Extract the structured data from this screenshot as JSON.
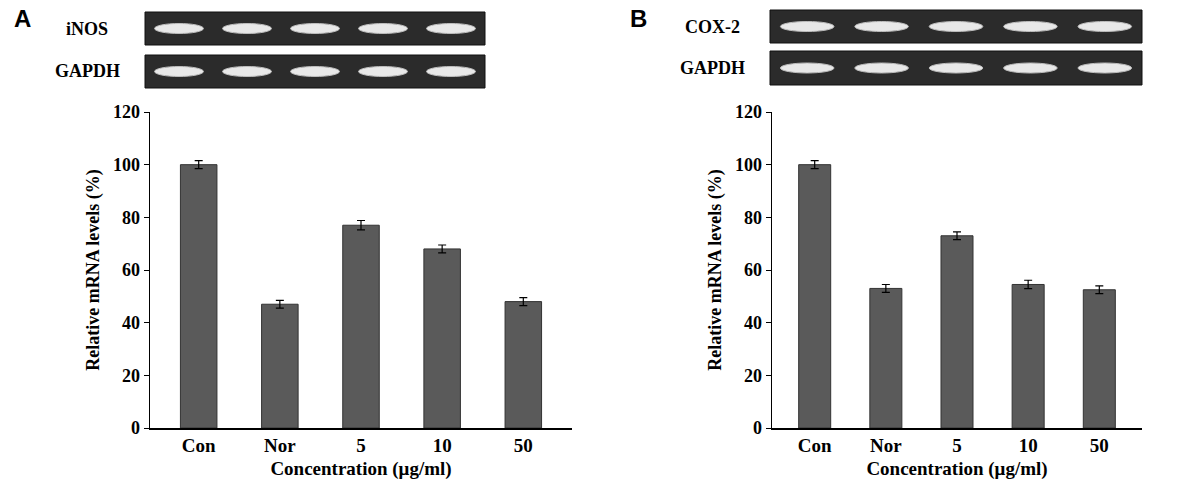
{
  "chart_data": [
    {
      "type": "bar",
      "panel": "A",
      "gel_labels": [
        "iNOS",
        "GAPDH"
      ],
      "categories": [
        "Con",
        "Nor",
        "5",
        "10",
        "50"
      ],
      "values": [
        100,
        47,
        77,
        68,
        48
      ],
      "errors": [
        1.5,
        1.5,
        1.8,
        1.5,
        1.5
      ],
      "color": "#5a5a5a",
      "x_label": "Concentration (μg/ml)",
      "y_label": "Relative mRNA levels (%)",
      "ylim": [
        0,
        120
      ],
      "yticks": [
        0,
        20,
        40,
        60,
        80,
        100,
        120
      ],
      "grid": false
    },
    {
      "type": "bar",
      "panel": "B",
      "gel_labels": [
        "COX-2",
        "GAPDH"
      ],
      "categories": [
        "Con",
        "Nor",
        "5",
        "10",
        "50"
      ],
      "values": [
        100,
        53,
        73,
        54.5,
        52.5
      ],
      "errors": [
        1.5,
        1.5,
        1.5,
        1.6,
        1.5
      ],
      "color": "#5a5a5a",
      "x_label": "Concentration (μg/ml)",
      "y_label": "Relative mRNA levels (%)",
      "ylim": [
        0,
        120
      ],
      "yticks": [
        0,
        20,
        40,
        60,
        80,
        100,
        120
      ],
      "grid": false
    }
  ]
}
